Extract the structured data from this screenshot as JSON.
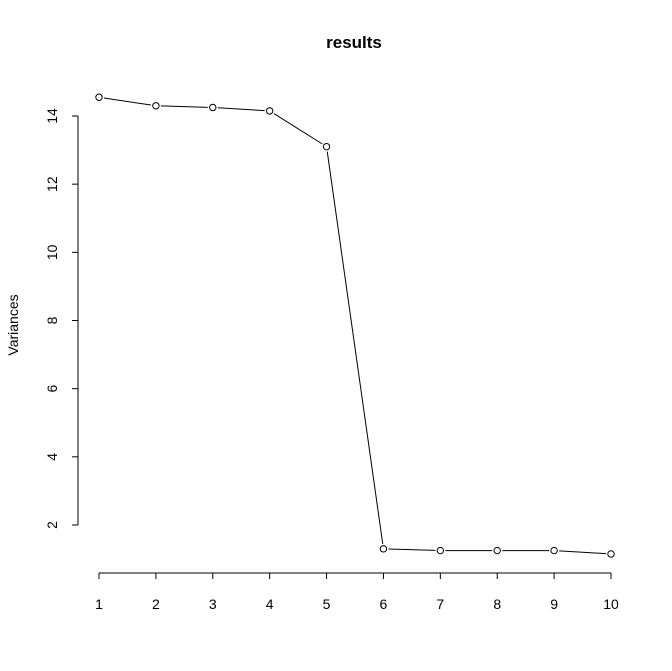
{
  "chart_data": {
    "type": "line",
    "title": "results",
    "xlabel": "",
    "ylabel": "Variances",
    "x": [
      1,
      2,
      3,
      4,
      5,
      6,
      7,
      8,
      9,
      10
    ],
    "xticks": [
      1,
      2,
      3,
      4,
      5,
      6,
      7,
      8,
      9,
      10
    ],
    "yticks": [
      2,
      4,
      6,
      8,
      10,
      12,
      14
    ],
    "series": [
      {
        "values": [
          14.55,
          14.3,
          14.25,
          14.15,
          13.1,
          1.3,
          1.25,
          1.25,
          1.25,
          1.15
        ]
      }
    ],
    "markers": "open-circle",
    "grid": false,
    "legend": "none"
  }
}
